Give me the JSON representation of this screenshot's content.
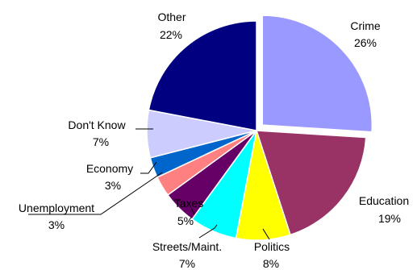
{
  "chart_data": {
    "type": "pie",
    "slices": [
      {
        "label": "Crime",
        "value": 26,
        "value_label": "26%",
        "color": "#9999ff",
        "exploded": true
      },
      {
        "label": "Education",
        "value": 19,
        "value_label": "19%",
        "color": "#993366"
      },
      {
        "label": "Politics",
        "value": 8,
        "value_label": "8%",
        "color": "#ffff00"
      },
      {
        "label": "Streets/Maint.",
        "value": 7,
        "value_label": "7%",
        "color": "#00ffff"
      },
      {
        "label": "Taxes",
        "value": 5,
        "value_label": "5%",
        "color": "#660066"
      },
      {
        "label": "Unemployment",
        "value": 3,
        "value_label": "3%",
        "color": "#ff8080"
      },
      {
        "label": "Economy",
        "value": 3,
        "value_label": "3%",
        "color": "#0066cc"
      },
      {
        "label": "Don't Know",
        "value": 7,
        "value_label": "7%",
        "color": "#ccccff"
      },
      {
        "label": "Other",
        "value": 22,
        "value_label": "22%",
        "color": "#000080"
      }
    ],
    "slice_border_color": "#ffffff",
    "leader_line_color": "#000000",
    "legend": "none",
    "title": ""
  }
}
